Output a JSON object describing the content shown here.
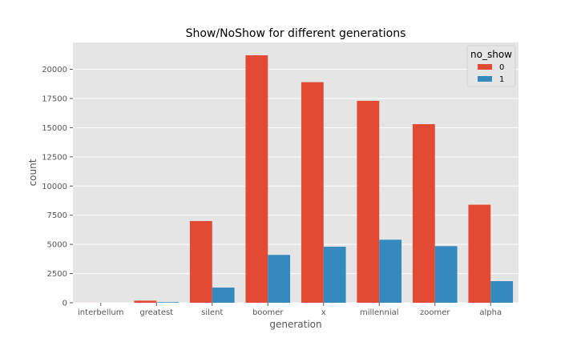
{
  "chart_data": {
    "type": "bar",
    "title": "Show/NoShow for different generations",
    "xlabel": "generation",
    "ylabel": "count",
    "categories": [
      "interbellum",
      "greatest",
      "silent",
      "boomer",
      "x",
      "millennial",
      "zoomer",
      "alpha"
    ],
    "series": [
      {
        "name": "0",
        "color": "#E24A33",
        "values": [
          5,
          180,
          7000,
          21200,
          18900,
          17300,
          15300,
          8400
        ]
      },
      {
        "name": "1",
        "color": "#348ABD",
        "values": [
          2,
          50,
          1300,
          4100,
          4800,
          5400,
          4850,
          1850
        ]
      }
    ],
    "ylim": [
      0,
      22300
    ],
    "yticks": [
      0,
      2500,
      5000,
      7500,
      10000,
      12500,
      15000,
      17500,
      20000
    ],
    "grid": true,
    "legend": {
      "title": "no_show",
      "placement": "top-right"
    }
  }
}
